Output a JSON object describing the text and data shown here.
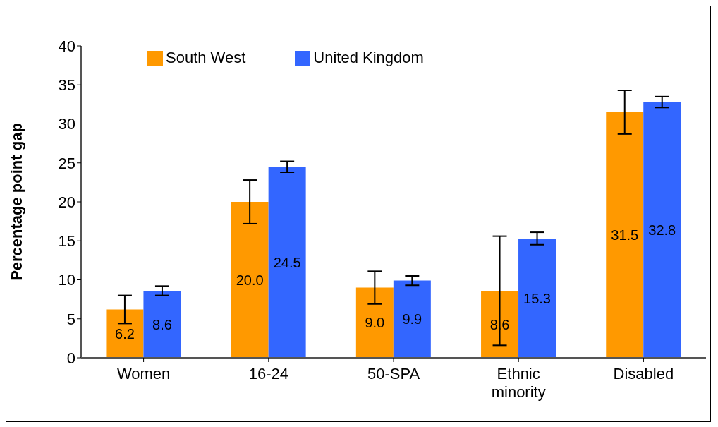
{
  "chart_data": {
    "type": "bar",
    "ylabel": "Percentage point gap",
    "categories": [
      "Women",
      "16-24",
      "50-SPA",
      "Ethnic minority",
      "Disabled"
    ],
    "series": [
      {
        "name": "South West",
        "color": "#ff9900",
        "values": [
          6.2,
          20.0,
          9.0,
          8.6,
          31.5
        ],
        "value_labels": [
          "6.2",
          "20.0",
          "9.0",
          "8.6",
          "31.5"
        ],
        "errors": [
          1.8,
          2.8,
          2.1,
          7.0,
          2.8
        ]
      },
      {
        "name": "United Kingdom",
        "color": "#3366ff",
        "values": [
          8.6,
          24.5,
          9.9,
          15.3,
          32.8
        ],
        "value_labels": [
          "8.6",
          "24.5",
          "9.9",
          "15.3",
          "32.8"
        ],
        "errors": [
          0.6,
          0.7,
          0.6,
          0.8,
          0.7
        ]
      }
    ],
    "ylim": [
      0,
      40
    ],
    "yticks": [
      0,
      5,
      10,
      15,
      20,
      25,
      30,
      35,
      40
    ],
    "legend": "top left"
  }
}
